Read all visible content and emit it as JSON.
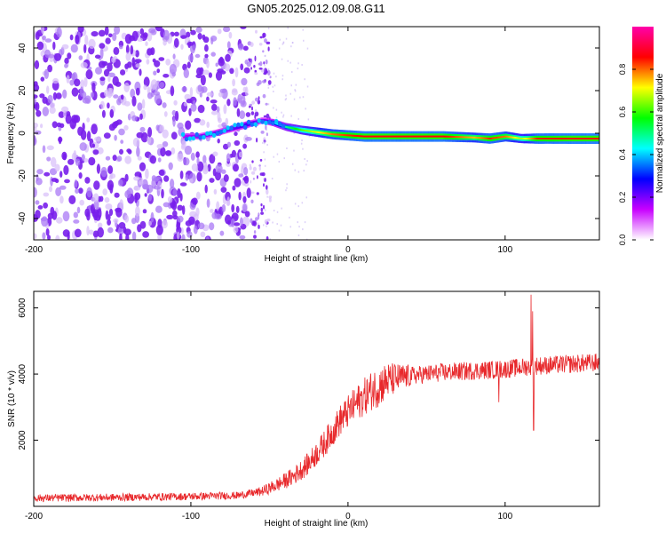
{
  "title": "GN05.2025.012.09.08.G11",
  "chart_data": [
    {
      "type": "heatmap",
      "xlabel": "Height of straight line (km)",
      "ylabel": "Frequency (Hz)",
      "xlim": [
        -200,
        160
      ],
      "ylim": [
        -50,
        50
      ],
      "xticks": [
        -200,
        -100,
        0,
        100
      ],
      "yticks": [
        -40,
        -20,
        0,
        20,
        40
      ],
      "noise_region_x": [
        -200,
        -55
      ],
      "signal_track": {
        "x": [
          -105,
          -95,
          -85,
          -75,
          -65,
          -55,
          -48,
          -40,
          -30,
          -20,
          -10,
          0,
          10,
          30,
          60,
          80,
          90,
          100,
          110,
          120,
          140,
          160
        ],
        "freq": [
          -1.5,
          -1.5,
          0,
          2,
          4,
          6,
          5,
          3,
          1.5,
          0.5,
          -0.5,
          -1,
          -1.5,
          -1.5,
          -1.5,
          -2,
          -2.5,
          -1.5,
          -2.5,
          -2.5,
          -2.5,
          -2.5
        ],
        "amplitude": [
          0.25,
          0.3,
          0.35,
          0.35,
          0.4,
          0.3,
          0.45,
          0.55,
          0.7,
          0.8,
          0.9,
          0.95,
          0.98,
          0.98,
          0.98,
          0.85,
          0.95,
          0.9,
          0.75,
          0.95,
          0.98,
          0.98
        ]
      },
      "colorbar": {
        "label": "Normalized spectral amplitude",
        "range": [
          0,
          1
        ],
        "ticks": [
          0.0,
          0.2,
          0.4,
          0.6,
          0.8
        ],
        "tick_labels": [
          "0.0",
          "0.2",
          "0.4",
          "0.6",
          "0.8"
        ],
        "colors": [
          "#ffffff",
          "#c800ff",
          "#0000ff",
          "#00ffff",
          "#00ff00",
          "#ffff00",
          "#ff0000",
          "#ff00aa"
        ]
      }
    },
    {
      "type": "line",
      "xlabel": "Height of straight line (km)",
      "ylabel": "SNR (10 * v/v)",
      "xlim": [
        -200,
        160
      ],
      "ylim": [
        0,
        6500
      ],
      "xticks": [
        -200,
        -100,
        0,
        100
      ],
      "yticks": [
        2000,
        4000,
        6000
      ],
      "color": "#e8292c",
      "trend": {
        "x": [
          -200,
          -150,
          -100,
          -70,
          -55,
          -45,
          -35,
          -25,
          -15,
          -5,
          5,
          15,
          25,
          40,
          60,
          80,
          100,
          120,
          140,
          160
        ],
        "y": [
          250,
          270,
          300,
          330,
          450,
          650,
          900,
          1300,
          1900,
          2600,
          3100,
          3500,
          3800,
          3950,
          4050,
          4100,
          4150,
          4250,
          4300,
          4350
        ]
      },
      "spikes": [
        {
          "x": 116.5,
          "y": 6400
        },
        {
          "x": 117.5,
          "y": 5900
        },
        {
          "x": 118.2,
          "y": 2300
        },
        {
          "x": 96,
          "y": 3150
        }
      ]
    }
  ]
}
